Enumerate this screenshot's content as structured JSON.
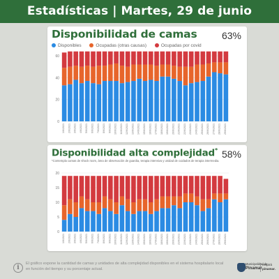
{
  "header": {
    "title": "Estadísticas | Martes, 29 de junio"
  },
  "colors": {
    "disponibles": "#2b8be3",
    "ocupadas": "#e7652b",
    "covid": "#d33a3f",
    "brand_green": "#2f6f3a"
  },
  "chart_data": [
    {
      "type": "bar",
      "stacked": true,
      "title": "Disponibilidad de camas",
      "percent_label": "63%",
      "legend_position": "top",
      "ylim": [
        0,
        60
      ],
      "yticks": [
        0,
        20,
        40,
        60
      ],
      "grid": true,
      "categories": [
        "1/6/2021",
        "2/6/2021",
        "3/6/2021",
        "4/6/2021",
        "5/6/2021",
        "6/6/2021",
        "7/6/2021",
        "8/6/2021",
        "9/6/2021",
        "10/6/2021",
        "11/6/2021",
        "12/6/2021",
        "13/6/2021",
        "14/6/2021",
        "15/6/2021",
        "16/6/2021",
        "17/6/2021",
        "18/6/2021",
        "19/6/2021",
        "20/6/2021",
        "21/6/2021",
        "22/6/2021",
        "23/6/2021",
        "24/6/2021",
        "25/6/2021",
        "26/6/2021",
        "27/6/2021",
        "28/6/2021",
        "29/6/2021"
      ],
      "series": [
        {
          "name": "Disponibles",
          "color": "#2b8be3",
          "values": [
            33,
            34,
            38,
            35,
            37,
            35,
            34,
            37,
            37,
            37,
            35,
            36,
            37,
            39,
            37,
            38,
            37,
            41,
            41,
            39,
            37,
            33,
            35,
            36,
            37,
            41,
            45,
            44,
            43
          ]
        },
        {
          "name": "Ocupadas (otras causas)",
          "color": "#e7652b",
          "values": [
            16,
            16,
            13,
            15,
            14,
            15,
            17,
            14,
            15,
            16,
            16,
            14,
            15,
            13,
            15,
            14,
            14,
            11,
            11,
            12,
            13,
            17,
            15,
            16,
            15,
            12,
            9,
            10,
            11
          ]
        },
        {
          "name": "Ocupadas por covid",
          "color": "#d33a3f",
          "values": [
            14,
            14,
            13,
            14,
            13,
            14,
            13,
            13,
            12,
            11,
            13,
            14,
            12,
            12,
            12,
            12,
            13,
            12,
            12,
            13,
            14,
            14,
            14,
            12,
            12,
            11,
            10,
            10,
            10
          ]
        }
      ]
    },
    {
      "type": "bar",
      "stacked": true,
      "title": "Disponibilidad alta complejidad",
      "title_marker": "*",
      "percent_label": "58%",
      "footnote": "*Contempla camas de shock room, área de observación de guardia, terapia intensiva y unidad de cuidados de terapia intermedia.",
      "ylim": [
        0,
        20
      ],
      "yticks": [
        0,
        5,
        10,
        15,
        20
      ],
      "grid": true,
      "categories": [
        "1/6/2021",
        "2/6/2021",
        "3/6/2021",
        "4/6/2021",
        "5/6/2021",
        "6/6/2021",
        "7/6/2021",
        "8/6/2021",
        "9/6/2021",
        "10/6/2021",
        "11/6/2021",
        "12/6/2021",
        "13/6/2021",
        "14/6/2021",
        "15/6/2021",
        "16/6/2021",
        "17/6/2021",
        "18/6/2021",
        "19/6/2021",
        "20/6/2021",
        "21/6/2021",
        "22/6/2021",
        "23/6/2021",
        "24/6/2021",
        "25/6/2021",
        "26/6/2021",
        "27/6/2021",
        "28/6/2021",
        "29/6/2021"
      ],
      "series": [
        {
          "name": "Disponibles",
          "color": "#2b8be3",
          "values": [
            4,
            6,
            5,
            8,
            7,
            7,
            6,
            8,
            7,
            6,
            9,
            7,
            6,
            7,
            7,
            6,
            7,
            8,
            8,
            9,
            8,
            10,
            10,
            9,
            7,
            8,
            11,
            10,
            11
          ]
        },
        {
          "name": "Ocupadas (otras causas)",
          "color": "#e7652b",
          "values": [
            5,
            5,
            5,
            4,
            4,
            3,
            4,
            4,
            4,
            4,
            3,
            4,
            4,
            4,
            4,
            4,
            4,
            4,
            4,
            3,
            4,
            3,
            3,
            3,
            4,
            3,
            2,
            3,
            2
          ]
        },
        {
          "name": "Ocupadas por covid",
          "color": "#d33a3f",
          "values": [
            10,
            8,
            9,
            7,
            8,
            9,
            9,
            7,
            8,
            9,
            7,
            8,
            9,
            8,
            8,
            9,
            8,
            7,
            7,
            7,
            7,
            6,
            6,
            7,
            8,
            8,
            6,
            6,
            5
          ]
        }
      ]
    }
  ],
  "footer": {
    "info_text": "El gráfico expone la cantidad de camas y unidades de alta complejidad disponibles en el sistema hospitalario local en función del tiempo y su porcentaje actual.",
    "municipality_top": "Municipalidad de",
    "municipality_name": "Pinamar",
    "brand_top": "respirá",
    "brand_name": "pinamar."
  }
}
